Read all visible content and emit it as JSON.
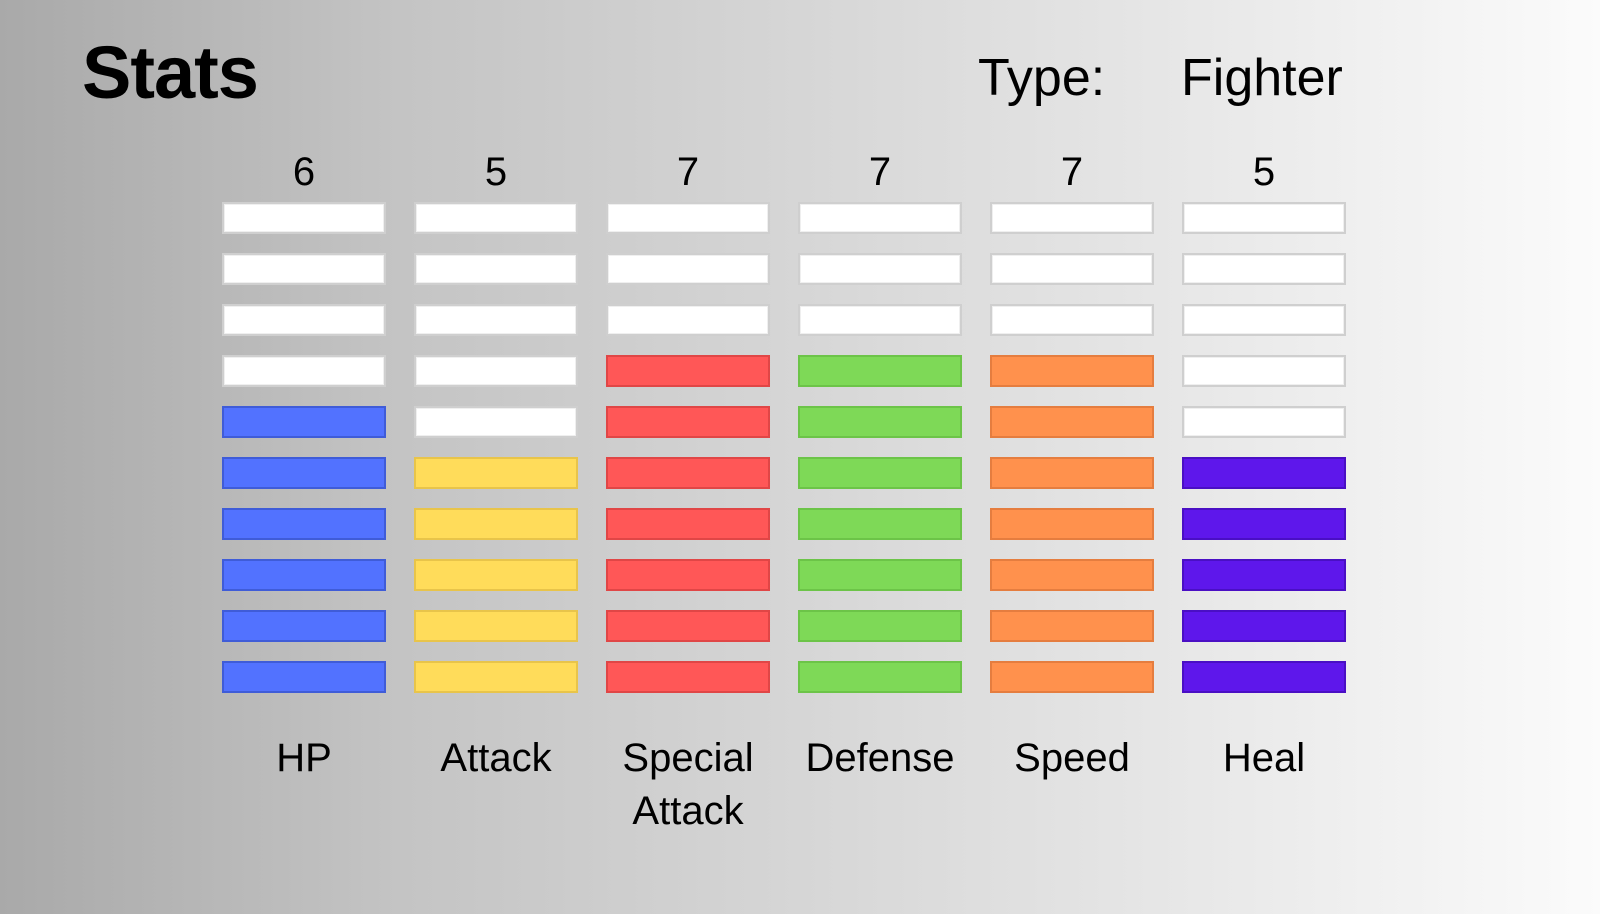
{
  "header": {
    "title": "Stats",
    "type_label": "Type:",
    "type_value": "Fighter"
  },
  "max_level": 10,
  "stats": [
    {
      "name": "HP",
      "value": "6",
      "level": 6,
      "color": "#5272FF",
      "border": "#3f5cd8"
    },
    {
      "name": "Attack",
      "value": "5",
      "level": 5,
      "color": "#FFDC5A",
      "border": "#e8c44a"
    },
    {
      "name": "Special Attack",
      "value": "7",
      "level": 7,
      "color": "#FF5757",
      "border": "#e04646"
    },
    {
      "name": "Defense",
      "value": "7",
      "level": 7,
      "color": "#7ED957",
      "border": "#6cc448"
    },
    {
      "name": "Speed",
      "value": "7",
      "level": 7,
      "color": "#FF914D",
      "border": "#e57d3f"
    },
    {
      "name": "Heal",
      "value": "5",
      "level": 5,
      "color": "#5E17EB",
      "border": "#4a0fc4"
    }
  ]
}
